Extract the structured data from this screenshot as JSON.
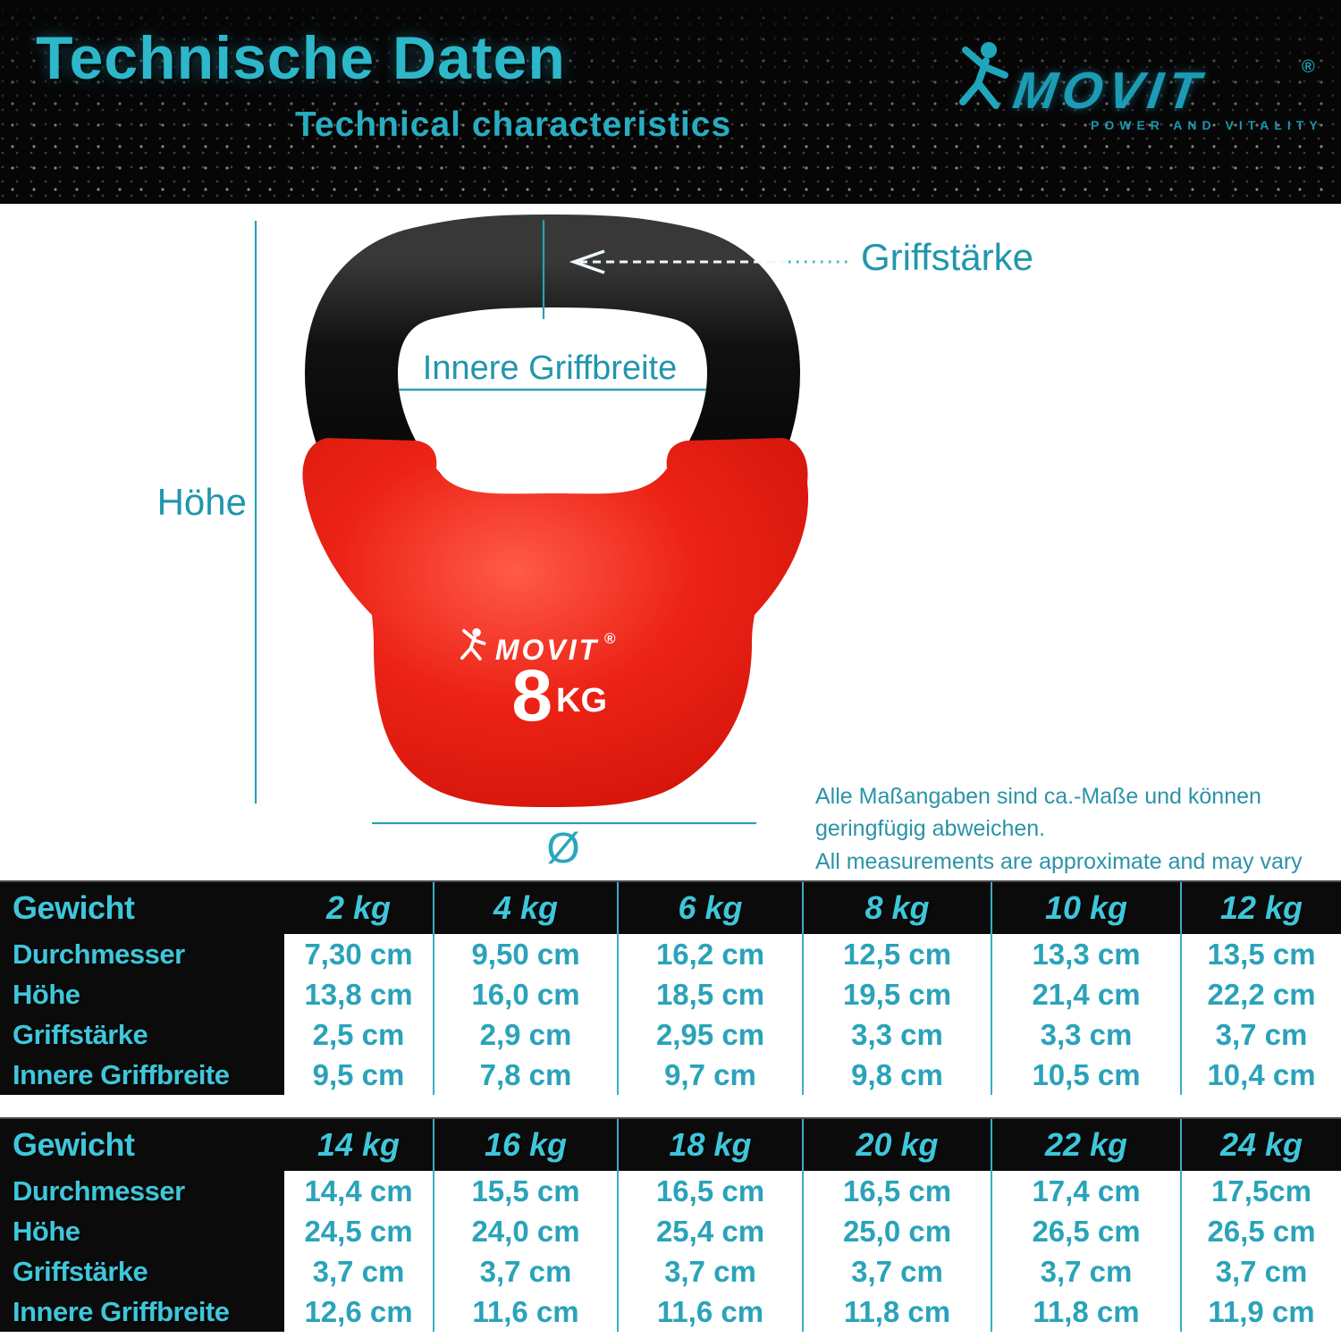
{
  "header": {
    "title": "Technische Daten",
    "subtitle": "Technical characteristics",
    "brand": {
      "name": "MOVIT",
      "reg": "®",
      "tagline": "POWER AND VITALITY",
      "figure_icon": "jumping-athlete-icon"
    }
  },
  "diagram": {
    "labels": {
      "griffstaerke": "Griffstärke",
      "innere_griffbreite": "Innere Griffbreite",
      "hoehe": "Höhe",
      "diameter": "Ø"
    },
    "kettlebell": {
      "brand": "MOVIT",
      "reg": "®",
      "weight": "8",
      "weight_unit": "KG"
    },
    "note_de": "Alle Maßangaben sind ca.-Maße und können geringfügig abweichen.",
    "note_en": "All measurements are approximate and may vary slightly."
  },
  "tables": [
    {
      "header_label": "Gewicht",
      "columns": [
        "2 kg",
        "4 kg",
        "6 kg",
        "8 kg",
        "10 kg",
        "12 kg"
      ],
      "rows": [
        {
          "label": "Durchmesser",
          "values": [
            "7,30 cm",
            "9,50 cm",
            "16,2 cm",
            "12,5 cm",
            "13,3 cm",
            "13,5 cm"
          ]
        },
        {
          "label": "Höhe",
          "values": [
            "13,8 cm",
            "16,0 cm",
            "18,5 cm",
            "19,5 cm",
            "21,4 cm",
            "22,2 cm"
          ]
        },
        {
          "label": "Griffstärke",
          "values": [
            "2,5 cm",
            "2,9 cm",
            "2,95 cm",
            "3,3 cm",
            "3,3 cm",
            "3,7 cm"
          ]
        },
        {
          "label": "Innere Griffbreite",
          "values": [
            "9,5 cm",
            "7,8 cm",
            "9,7 cm",
            "9,8 cm",
            "10,5 cm",
            "10,4 cm"
          ]
        }
      ]
    },
    {
      "header_label": "Gewicht",
      "columns": [
        "14 kg",
        "16 kg",
        "18 kg",
        "20 kg",
        "22 kg",
        "24 kg"
      ],
      "rows": [
        {
          "label": "Durchmesser",
          "values": [
            "14,4 cm",
            "15,5 cm",
            "16,5 cm",
            "16,5 cm",
            "17,4 cm",
            "17,5cm"
          ]
        },
        {
          "label": "Höhe",
          "values": [
            "24,5 cm",
            "24,0 cm",
            "25,4 cm",
            "25,0 cm",
            "26,5 cm",
            "26,5 cm"
          ]
        },
        {
          "label": "Griffstärke",
          "values": [
            "3,7 cm",
            "3,7 cm",
            "3,7 cm",
            "3,7 cm",
            "3,7 cm",
            "3,7 cm"
          ]
        },
        {
          "label": "Innere Griffbreite",
          "values": [
            "12,6 cm",
            "11,6 cm",
            "11,6 cm",
            "11,8 cm",
            "11,8 cm",
            "11,9 cm"
          ]
        }
      ]
    }
  ],
  "colors": {
    "accent_teal_bright": "#3fc6da",
    "accent_teal_dark": "#2196ad",
    "table_value_teal": "#2aa3ba",
    "kettlebell_red": "#e8211a",
    "background_black": "#0a0a0a"
  }
}
